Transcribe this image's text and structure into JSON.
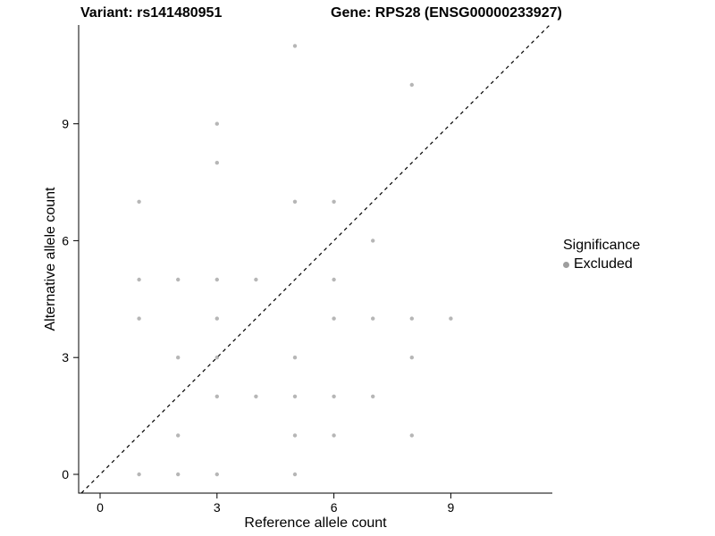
{
  "titles": {
    "variant": "Variant: rs141480951",
    "gene": "Gene: RPS28 (ENSG00000233927)"
  },
  "legend": {
    "title": "Significance",
    "items": [
      {
        "label": "Excluded",
        "color": "#9e9e9e"
      }
    ]
  },
  "chart_data": {
    "type": "scatter",
    "title": "",
    "xlabel": "Reference allele count",
    "ylabel": "Alternative allele count",
    "xticks": [
      0,
      3,
      6,
      9
    ],
    "yticks": [
      0,
      3,
      6,
      9
    ],
    "xlim": [
      -0.55,
      11.6
    ],
    "ylim": [
      -0.48,
      11.54
    ],
    "grid": "off",
    "legend_position": "right",
    "identity_line": {
      "style": "dashed",
      "intercept": 0,
      "slope": 1,
      "color": "#000000"
    },
    "series": [
      {
        "name": "Excluded",
        "color": "#9e9e9e",
        "points": [
          [
            1,
            0
          ],
          [
            2,
            0
          ],
          [
            3,
            0
          ],
          [
            5,
            0
          ],
          [
            2,
            1
          ],
          [
            5,
            1
          ],
          [
            6,
            1
          ],
          [
            8,
            1
          ],
          [
            3,
            2
          ],
          [
            4,
            2
          ],
          [
            5,
            2
          ],
          [
            6,
            2
          ],
          [
            7,
            2
          ],
          [
            2,
            3
          ],
          [
            3,
            3
          ],
          [
            5,
            3
          ],
          [
            8,
            3
          ],
          [
            1,
            4
          ],
          [
            3,
            4
          ],
          [
            6,
            4
          ],
          [
            7,
            4
          ],
          [
            8,
            4
          ],
          [
            9,
            4
          ],
          [
            1,
            5
          ],
          [
            2,
            5
          ],
          [
            3,
            5
          ],
          [
            4,
            5
          ],
          [
            6,
            5
          ],
          [
            7,
            6
          ],
          [
            1,
            7
          ],
          [
            5,
            7
          ],
          [
            6,
            7
          ],
          [
            3,
            8
          ],
          [
            3,
            9
          ],
          [
            8,
            10
          ],
          [
            5,
            11
          ]
        ]
      }
    ]
  }
}
